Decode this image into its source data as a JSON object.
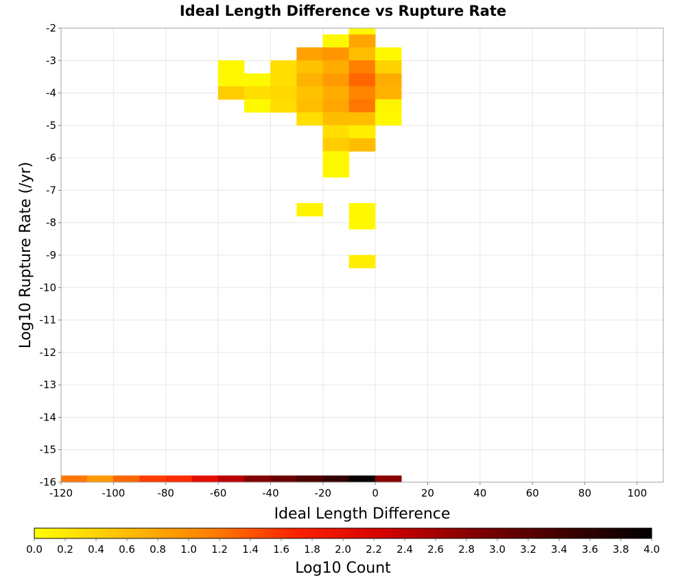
{
  "chart_data": {
    "type": "heatmap",
    "title": "Ideal Length Difference vs Rupture Rate",
    "xlabel": "Ideal Length Difference",
    "ylabel": "Log10 Rupture Rate (/yr)",
    "xlim": [
      -120,
      110
    ],
    "ylim": [
      -16,
      -2
    ],
    "x_ticks": [
      -120,
      -100,
      -80,
      -60,
      -40,
      -20,
      0,
      20,
      40,
      60,
      80,
      100
    ],
    "y_ticks": [
      -2,
      -3,
      -4,
      -5,
      -6,
      -7,
      -8,
      -9,
      -10,
      -11,
      -12,
      -13,
      -14,
      -15,
      -16
    ],
    "grid": true,
    "cell_width": 10,
    "cell_height": 0.4,
    "colorbar": {
      "label": "Log10 Count",
      "range": [
        0,
        4
      ],
      "ticks": [
        "0.0",
        "0.2",
        "0.4",
        "0.6",
        "0.8",
        "1.0",
        "1.2",
        "1.4",
        "1.6",
        "1.8",
        "2.0",
        "2.2",
        "2.4",
        "2.6",
        "2.8",
        "3.0",
        "3.2",
        "3.4",
        "3.6",
        "3.8",
        "4.0"
      ],
      "colors": [
        "#ffff00",
        "#ffc000",
        "#ff8000",
        "#ff2000",
        "#d00000",
        "#800000",
        "#400000",
        "#000000"
      ],
      "orientation": "horizontal",
      "placement": "bottom"
    },
    "cells": [
      {
        "x": -10,
        "y": -2.0,
        "log10_count": 0.05
      },
      {
        "x": -20,
        "y": -2.4,
        "log10_count": 0.05
      },
      {
        "x": -10,
        "y": -2.4,
        "log10_count": 0.8
      },
      {
        "x": -30,
        "y": -2.8,
        "log10_count": 0.85
      },
      {
        "x": -20,
        "y": -2.8,
        "log10_count": 0.95
      },
      {
        "x": -10,
        "y": -2.8,
        "log10_count": 0.6
      },
      {
        "x": 0,
        "y": -2.8,
        "log10_count": 0.05
      },
      {
        "x": -60,
        "y": -3.2,
        "log10_count": 0.05
      },
      {
        "x": -40,
        "y": -3.2,
        "log10_count": 0.3
      },
      {
        "x": -30,
        "y": -3.2,
        "log10_count": 0.55
      },
      {
        "x": -20,
        "y": -3.2,
        "log10_count": 0.75
      },
      {
        "x": -10,
        "y": -3.2,
        "log10_count": 1.15
      },
      {
        "x": 0,
        "y": -3.2,
        "log10_count": 0.4
      },
      {
        "x": -60,
        "y": -3.6,
        "log10_count": 0.05
      },
      {
        "x": -50,
        "y": -3.6,
        "log10_count": 0.05
      },
      {
        "x": -40,
        "y": -3.6,
        "log10_count": 0.3
      },
      {
        "x": -30,
        "y": -3.6,
        "log10_count": 0.7
      },
      {
        "x": -20,
        "y": -3.6,
        "log10_count": 0.9
      },
      {
        "x": -10,
        "y": -3.6,
        "log10_count": 1.3
      },
      {
        "x": 0,
        "y": -3.6,
        "log10_count": 0.75
      },
      {
        "x": -60,
        "y": -4.0,
        "log10_count": 0.45
      },
      {
        "x": -50,
        "y": -4.0,
        "log10_count": 0.3
      },
      {
        "x": -40,
        "y": -4.0,
        "log10_count": 0.35
      },
      {
        "x": -30,
        "y": -4.0,
        "log10_count": 0.55
      },
      {
        "x": -20,
        "y": -4.0,
        "log10_count": 0.75
      },
      {
        "x": -10,
        "y": -4.0,
        "log10_count": 1.1
      },
      {
        "x": 0,
        "y": -4.0,
        "log10_count": 0.7
      },
      {
        "x": -50,
        "y": -4.4,
        "log10_count": 0.05
      },
      {
        "x": -40,
        "y": -4.4,
        "log10_count": 0.3
      },
      {
        "x": -30,
        "y": -4.4,
        "log10_count": 0.6
      },
      {
        "x": -20,
        "y": -4.4,
        "log10_count": 0.8
      },
      {
        "x": -10,
        "y": -4.4,
        "log10_count": 1.2
      },
      {
        "x": 0,
        "y": -4.4,
        "log10_count": 0.1
      },
      {
        "x": -30,
        "y": -4.8,
        "log10_count": 0.3
      },
      {
        "x": -20,
        "y": -4.8,
        "log10_count": 0.6
      },
      {
        "x": -10,
        "y": -4.8,
        "log10_count": 0.6
      },
      {
        "x": 0,
        "y": -4.8,
        "log10_count": 0.05
      },
      {
        "x": -20,
        "y": -5.2,
        "log10_count": 0.3
      },
      {
        "x": -10,
        "y": -5.2,
        "log10_count": 0.15
      },
      {
        "x": -20,
        "y": -5.6,
        "log10_count": 0.45
      },
      {
        "x": -10,
        "y": -5.6,
        "log10_count": 0.6
      },
      {
        "x": -20,
        "y": -6.0,
        "log10_count": 0.05
      },
      {
        "x": -20,
        "y": -6.4,
        "log10_count": 0.05
      },
      {
        "x": -30,
        "y": -7.6,
        "log10_count": 0.1
      },
      {
        "x": -10,
        "y": -7.6,
        "log10_count": 0.05
      },
      {
        "x": -10,
        "y": -8.0,
        "log10_count": 0.05
      },
      {
        "x": -10,
        "y": -9.2,
        "log10_count": 0.15
      },
      {
        "x": -120,
        "y": -16.0,
        "log10_count": 1.2
      },
      {
        "x": -110,
        "y": -16.0,
        "log10_count": 0.9
      },
      {
        "x": -100,
        "y": -16.0,
        "log10_count": 1.3
      },
      {
        "x": -90,
        "y": -16.0,
        "log10_count": 1.55
      },
      {
        "x": -80,
        "y": -16.0,
        "log10_count": 1.65
      },
      {
        "x": -70,
        "y": -16.0,
        "log10_count": 2.05
      },
      {
        "x": -60,
        "y": -16.0,
        "log10_count": 2.45
      },
      {
        "x": -50,
        "y": -16.0,
        "log10_count": 2.85
      },
      {
        "x": -40,
        "y": -16.0,
        "log10_count": 3.05
      },
      {
        "x": -30,
        "y": -16.0,
        "log10_count": 3.3
      },
      {
        "x": -20,
        "y": -16.0,
        "log10_count": 3.55
      },
      {
        "x": -10,
        "y": -16.0,
        "log10_count": 3.95
      },
      {
        "x": 0,
        "y": -16.0,
        "log10_count": 2.8
      }
    ]
  }
}
